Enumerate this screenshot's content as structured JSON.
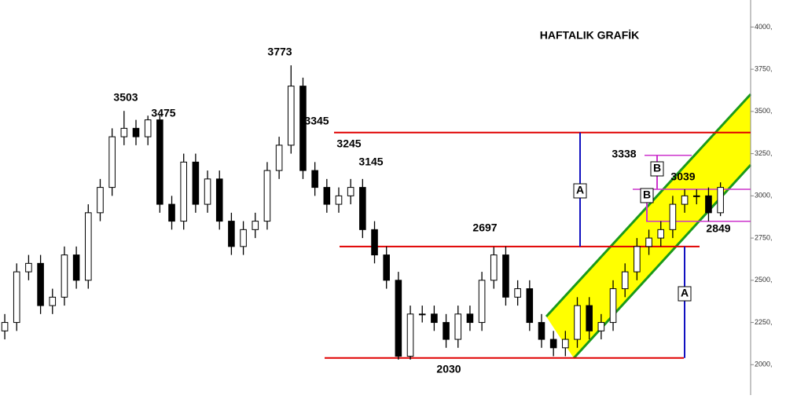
{
  "chart_data": {
    "type": "candlestick",
    "title": "HAFTALIK GRAFİK",
    "x": [
      0,
      1,
      2,
      3,
      4,
      5,
      6,
      7,
      8,
      9,
      10,
      11,
      12,
      13,
      14,
      15,
      16,
      17,
      18,
      19,
      20,
      21,
      22,
      23,
      24,
      25,
      26,
      27,
      28,
      29,
      30,
      31,
      32,
      33,
      34,
      35,
      36,
      37,
      38,
      39,
      40,
      41,
      42,
      43,
      44,
      45,
      46,
      47,
      48,
      49,
      50,
      51,
      52,
      53,
      54,
      55,
      56,
      57,
      58,
      59,
      60
    ],
    "open": [
      2200,
      2250,
      2550,
      2600,
      2350,
      2400,
      2650,
      2500,
      2900,
      3050,
      3350,
      3400,
      3350,
      3450,
      2950,
      2850,
      3200,
      2950,
      3100,
      2850,
      2700,
      2800,
      2850,
      3150,
      3300,
      3650,
      3150,
      3050,
      2950,
      3000,
      3050,
      2800,
      2650,
      2500,
      2050,
      2300,
      2300,
      2250,
      2150,
      2300,
      2250,
      2500,
      2650,
      2400,
      2450,
      2250,
      2150,
      2100,
      2150,
      2350,
      2200,
      2250,
      2450,
      2550,
      2700,
      2750,
      2800,
      2950,
      3000,
      3000,
      2900
    ],
    "high": [
      2300,
      2600,
      2650,
      2650,
      2450,
      2700,
      2700,
      2950,
      3100,
      3400,
      3503,
      3450,
      3475,
      3480,
      3000,
      3250,
      3250,
      3150,
      3150,
      2900,
      2850,
      2900,
      3200,
      3350,
      3773,
      3700,
      3200,
      3100,
      3050,
      3100,
      3100,
      2850,
      2700,
      2550,
      2350,
      2350,
      2350,
      2300,
      2350,
      2350,
      2550,
      2697,
      2700,
      2500,
      2500,
      2300,
      2200,
      2200,
      2400,
      2400,
      2300,
      2500,
      2600,
      2750,
      2800,
      2850,
      3000,
      3039,
      3039,
      3050,
      3080
    ],
    "low": [
      2150,
      2200,
      2500,
      2300,
      2300,
      2350,
      2450,
      2450,
      2850,
      3000,
      3300,
      3300,
      3300,
      2900,
      2800,
      2800,
      2900,
      2900,
      2800,
      2650,
      2650,
      2750,
      2800,
      3100,
      3250,
      3100,
      3000,
      2900,
      2900,
      2950,
      2750,
      2600,
      2450,
      2030,
      2030,
      2250,
      2200,
      2100,
      2100,
      2200,
      2200,
      2450,
      2350,
      2350,
      2200,
      2100,
      2050,
      2050,
      2100,
      2150,
      2150,
      2200,
      2400,
      2500,
      2650,
      2700,
      2750,
      2900,
      2950,
      2849,
      2880
    ],
    "close": [
      2250,
      2550,
      2600,
      2350,
      2400,
      2650,
      2500,
      2900,
      3050,
      3350,
      3400,
      3350,
      3450,
      2950,
      2850,
      3200,
      2950,
      3100,
      2850,
      2700,
      2800,
      2850,
      3150,
      3300,
      3650,
      3150,
      3050,
      2950,
      3000,
      3050,
      2800,
      2650,
      2500,
      2050,
      2300,
      2300,
      2250,
      2150,
      2300,
      2250,
      2500,
      2650,
      2400,
      2450,
      2250,
      2150,
      2100,
      2150,
      2350,
      2200,
      2250,
      2450,
      2550,
      2700,
      2750,
      2800,
      2950,
      3000,
      3000,
      2900,
      3050
    ],
    "xlim": [
      -0.4,
      62.2
    ],
    "ylim": [
      1820,
      4160
    ],
    "yticks": [
      {
        "value": 2000,
        "label": "2000,"
      },
      {
        "value": 2250,
        "label": "2250,"
      },
      {
        "value": 2500,
        "label": "2500,"
      },
      {
        "value": 2750,
        "label": "2750,"
      },
      {
        "value": 3000,
        "label": "3000,"
      },
      {
        "value": 3250,
        "label": "3250,"
      },
      {
        "value": 3500,
        "label": "3500,"
      },
      {
        "value": 3750,
        "label": "3750,"
      },
      {
        "value": 4000,
        "label": "4000,"
      }
    ],
    "point_labels": [
      "3503",
      "3475",
      "3773",
      "3345",
      "3245",
      "3145",
      "2697",
      "2030",
      "3338",
      "3039",
      "2849"
    ],
    "red_levels": [
      3375,
      2700,
      2040
    ],
    "magenta_levels": [
      3240,
      3039,
      2849
    ],
    "measure_labels": [
      "A",
      "A",
      "B",
      "B"
    ]
  }
}
